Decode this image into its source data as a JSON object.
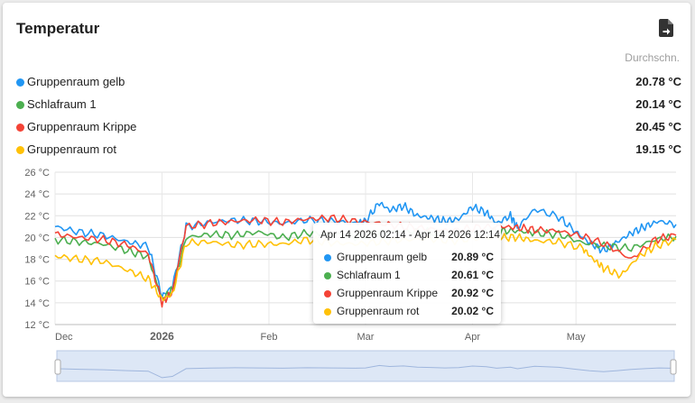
{
  "card": {
    "title": "Temperatur",
    "export_icon": "file-export-icon",
    "column_header": "Durchschn."
  },
  "sensors": [
    {
      "name": "Gruppenraum gelb",
      "avg": "20.78 °C",
      "color": "#2196f3"
    },
    {
      "name": "Schlafraum 1",
      "avg": "20.14 °C",
      "color": "#4caf50"
    },
    {
      "name": "Gruppenraum Krippe",
      "avg": "20.45 °C",
      "color": "#f44336"
    },
    {
      "name": "Gruppenraum rot",
      "avg": "19.15 °C",
      "color": "#ffc107"
    }
  ],
  "tooltip": {
    "title": "Apr 14 2026 02:14 - Apr 14 2026 12:14",
    "rows": [
      {
        "name": "Gruppenraum gelb",
        "value": "20.89 °C"
      },
      {
        "name": "Schlafraum 1",
        "value": "20.61 °C"
      },
      {
        "name": "Gruppenraum Krippe",
        "value": "20.92 °C"
      },
      {
        "name": "Gruppenraum rot",
        "value": "20.02 °C"
      }
    ]
  },
  "chart_data": {
    "type": "line",
    "y_ticks": [
      "26 °C",
      "24 °C",
      "22 °C",
      "20 °C",
      "18 °C",
      "16 °C",
      "14 °C",
      "12 °C"
    ],
    "ylim": [
      12,
      26
    ],
    "x_ticks": [
      {
        "label": "Dec",
        "date": "2025-12-01"
      },
      {
        "label": "2026",
        "date": "2026-01-01",
        "bold": true
      },
      {
        "label": "Feb",
        "date": "2026-02-01"
      },
      {
        "label": "Mar",
        "date": "2026-03-01"
      },
      {
        "label": "Apr",
        "date": "2026-04-01"
      },
      {
        "label": "May",
        "date": "2026-05-01"
      }
    ],
    "xlim": [
      "2025-12-01",
      "2026-05-30"
    ],
    "grid": true,
    "series": [
      {
        "name": "Gruppenraum gelb",
        "color": "#2196f3",
        "x": [
          "2025-12-01",
          "2025-12-08",
          "2025-12-15",
          "2025-12-22",
          "2025-12-28",
          "2026-01-01",
          "2026-01-04",
          "2026-01-08",
          "2026-01-15",
          "2026-01-22",
          "2026-01-29",
          "2026-02-05",
          "2026-02-12",
          "2026-02-19",
          "2026-02-26",
          "2026-03-01",
          "2026-03-05",
          "2026-03-08",
          "2026-03-12",
          "2026-03-16",
          "2026-03-20",
          "2026-03-24",
          "2026-03-28",
          "2026-04-01",
          "2026-04-05",
          "2026-04-08",
          "2026-04-12",
          "2026-04-14",
          "2026-04-19",
          "2026-04-26",
          "2026-05-01",
          "2026-05-05",
          "2026-05-09",
          "2026-05-13",
          "2026-05-17",
          "2026-05-21",
          "2026-05-25",
          "2026-05-30"
        ],
        "y": [
          21.0,
          20.5,
          20.2,
          19.6,
          19.2,
          14.6,
          15.5,
          21.0,
          21.4,
          21.6,
          21.5,
          21.3,
          21.6,
          21.5,
          21.3,
          21.5,
          23.2,
          22.5,
          22.9,
          22.0,
          21.8,
          21.5,
          21.7,
          22.8,
          22.3,
          21.3,
          22.0,
          20.9,
          22.6,
          21.9,
          20.5,
          19.5,
          18.8,
          19.6,
          20.4,
          21.0,
          21.5,
          21.2
        ]
      },
      {
        "name": "Schlafraum 1",
        "color": "#4caf50",
        "x": [
          "2025-12-01",
          "2025-12-08",
          "2025-12-15",
          "2025-12-22",
          "2025-12-28",
          "2026-01-01",
          "2026-01-04",
          "2026-01-08",
          "2026-01-15",
          "2026-01-22",
          "2026-01-29",
          "2026-02-05",
          "2026-02-12",
          "2026-02-19",
          "2026-02-26",
          "2026-03-05",
          "2026-03-12",
          "2026-03-19",
          "2026-03-26",
          "2026-04-02",
          "2026-04-09",
          "2026-04-14",
          "2026-04-19",
          "2026-04-26",
          "2026-05-03",
          "2026-05-10",
          "2026-05-17",
          "2026-05-24",
          "2026-05-30"
        ],
        "y": [
          19.8,
          19.6,
          19.4,
          18.8,
          18.2,
          14.3,
          15.2,
          20.0,
          20.3,
          20.2,
          20.5,
          20.0,
          20.4,
          20.3,
          20.1,
          20.4,
          20.6,
          20.5,
          20.3,
          20.4,
          20.6,
          20.61,
          20.4,
          20.3,
          19.5,
          19.2,
          19.0,
          19.8,
          20.1
        ]
      },
      {
        "name": "Gruppenraum Krippe",
        "color": "#f44336",
        "x": [
          "2025-12-01",
          "2025-12-08",
          "2025-12-15",
          "2025-12-22",
          "2025-12-28",
          "2026-01-01",
          "2026-01-04",
          "2026-01-08",
          "2026-01-15",
          "2026-01-22",
          "2026-01-29",
          "2026-02-05",
          "2026-02-12",
          "2026-02-19",
          "2026-02-26",
          "2026-03-05",
          "2026-03-12",
          "2026-03-19",
          "2026-03-26",
          "2026-04-02",
          "2026-04-09",
          "2026-04-14",
          "2026-04-19",
          "2026-04-26",
          "2026-05-03",
          "2026-05-10",
          "2026-05-17",
          "2026-05-24",
          "2026-05-30"
        ],
        "y": [
          20.3,
          20.0,
          19.8,
          19.3,
          18.5,
          14.0,
          15.0,
          21.0,
          21.3,
          21.5,
          21.6,
          21.4,
          21.7,
          21.8,
          21.5,
          21.3,
          21.0,
          20.8,
          20.6,
          20.9,
          21.0,
          20.92,
          20.7,
          20.6,
          20.1,
          19.3,
          18.0,
          19.8,
          20.2
        ]
      },
      {
        "name": "Gruppenraum rot",
        "color": "#ffc107",
        "x": [
          "2025-12-01",
          "2025-12-08",
          "2025-12-15",
          "2025-12-22",
          "2025-12-28",
          "2026-01-01",
          "2026-01-04",
          "2026-01-08",
          "2026-01-15",
          "2026-01-22",
          "2026-01-29",
          "2026-02-05",
          "2026-02-12",
          "2026-02-19",
          "2026-02-26",
          "2026-03-05",
          "2026-03-12",
          "2026-03-19",
          "2026-03-26",
          "2026-04-02",
          "2026-04-09",
          "2026-04-14",
          "2026-04-19",
          "2026-04-26",
          "2026-05-03",
          "2026-05-06",
          "2026-05-09",
          "2026-05-14",
          "2026-05-19",
          "2026-05-24",
          "2026-05-30"
        ],
        "y": [
          18.3,
          18.0,
          17.8,
          17.0,
          16.2,
          14.3,
          14.8,
          19.5,
          19.6,
          19.3,
          19.4,
          19.4,
          19.8,
          19.5,
          19.4,
          19.6,
          19.8,
          19.9,
          19.7,
          19.9,
          20.0,
          20.02,
          19.7,
          19.6,
          19.0,
          18.0,
          17.2,
          16.5,
          18.2,
          19.2,
          19.8
        ]
      }
    ]
  }
}
